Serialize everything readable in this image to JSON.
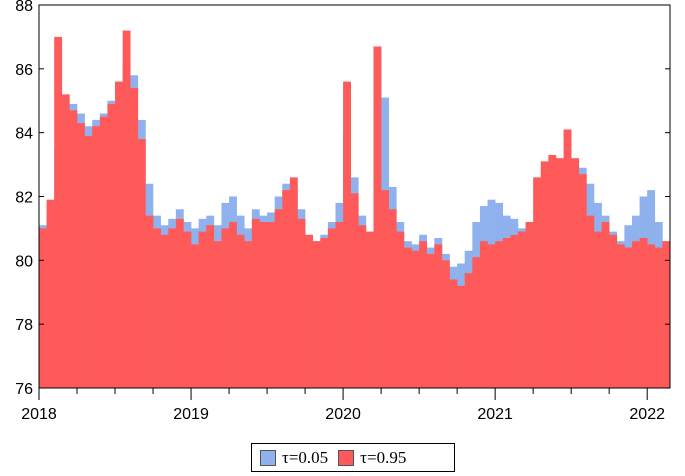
{
  "chart_data": {
    "type": "bar",
    "title": "",
    "xlabel": "",
    "ylabel": "",
    "ylim": [
      76,
      88
    ],
    "xlim": [
      2018.0,
      2022.15
    ],
    "yticks": [
      "76",
      "78",
      "80",
      "82",
      "84",
      "86",
      "88"
    ],
    "xticks": [
      "2018",
      "2019",
      "2020",
      "2021",
      "2022"
    ],
    "grid": false,
    "legend_position": "bottom-center",
    "series": [
      {
        "name": "τ=0.05",
        "color": "#8fb2ee",
        "x": [
          2018.0,
          2018.05,
          2018.1,
          2018.15,
          2018.2,
          2018.25,
          2018.3,
          2018.35,
          2018.4,
          2018.45,
          2018.5,
          2018.55,
          2018.6,
          2018.65,
          2018.7,
          2018.75,
          2018.8,
          2018.85,
          2018.9,
          2018.95,
          2019.0,
          2019.05,
          2019.1,
          2019.15,
          2019.2,
          2019.25,
          2019.3,
          2019.35,
          2019.4,
          2019.45,
          2019.5,
          2019.55,
          2019.6,
          2019.65,
          2019.7,
          2019.75,
          2019.8,
          2019.85,
          2019.9,
          2019.95,
          2020.0,
          2020.05,
          2020.1,
          2020.15,
          2020.2,
          2020.25,
          2020.3,
          2020.35,
          2020.4,
          2020.45,
          2020.5,
          2020.55,
          2020.6,
          2020.65,
          2020.7,
          2020.75,
          2020.8,
          2020.85,
          2020.9,
          2020.95,
          2021.0,
          2021.05,
          2021.1,
          2021.15,
          2021.2,
          2021.25,
          2021.3,
          2021.35,
          2021.4,
          2021.45,
          2021.5,
          2021.55,
          2021.6,
          2021.65,
          2021.7,
          2021.75,
          2021.8,
          2021.85,
          2021.9,
          2021.95,
          2022.0,
          2022.05,
          2022.1,
          2022.15
        ],
        "values": [
          81.1,
          81.4,
          83.5,
          84.8,
          84.9,
          84.6,
          84.2,
          84.4,
          84.6,
          85.0,
          85.6,
          86.2,
          85.8,
          84.4,
          82.4,
          81.4,
          81.1,
          81.3,
          81.6,
          81.2,
          81.0,
          81.3,
          81.4,
          81.1,
          81.8,
          82.0,
          81.4,
          81.0,
          81.6,
          81.4,
          81.5,
          82.0,
          82.4,
          82.2,
          81.6,
          80.8,
          80.6,
          80.8,
          81.2,
          81.8,
          84.0,
          82.6,
          81.4,
          80.8,
          86.7,
          85.1,
          82.3,
          81.2,
          80.6,
          80.5,
          80.8,
          80.4,
          80.7,
          80.2,
          79.8,
          79.9,
          80.3,
          81.2,
          81.7,
          81.9,
          81.8,
          81.4,
          81.3,
          81.0,
          80.6,
          80.8,
          81.5,
          82.6,
          82.9,
          82.8,
          82.9,
          82.9,
          82.4,
          81.8,
          81.4,
          80.9,
          80.6,
          81.1,
          81.4,
          82.0,
          82.2,
          81.2,
          80.6,
          80.8
        ]
      },
      {
        "name": "τ=0.95",
        "color": "#ff5a5a",
        "x": [
          2018.0,
          2018.05,
          2018.1,
          2018.15,
          2018.2,
          2018.25,
          2018.3,
          2018.35,
          2018.4,
          2018.45,
          2018.5,
          2018.55,
          2018.6,
          2018.65,
          2018.7,
          2018.75,
          2018.8,
          2018.85,
          2018.9,
          2018.95,
          2019.0,
          2019.05,
          2019.1,
          2019.15,
          2019.2,
          2019.25,
          2019.3,
          2019.35,
          2019.4,
          2019.45,
          2019.5,
          2019.55,
          2019.6,
          2019.65,
          2019.7,
          2019.75,
          2019.8,
          2019.85,
          2019.9,
          2019.95,
          2020.0,
          2020.05,
          2020.1,
          2020.15,
          2020.2,
          2020.25,
          2020.3,
          2020.35,
          2020.4,
          2020.45,
          2020.5,
          2020.55,
          2020.6,
          2020.65,
          2020.7,
          2020.75,
          2020.8,
          2020.85,
          2020.9,
          2020.95,
          2021.0,
          2021.05,
          2021.1,
          2021.15,
          2021.2,
          2021.25,
          2021.3,
          2021.35,
          2021.4,
          2021.45,
          2021.5,
          2021.55,
          2021.6,
          2021.65,
          2021.7,
          2021.75,
          2021.8,
          2021.85,
          2021.9,
          2021.95,
          2022.0,
          2022.05,
          2022.1,
          2022.15
        ],
        "values": [
          81.0,
          81.9,
          87.0,
          85.2,
          84.7,
          84.3,
          83.9,
          84.2,
          84.5,
          84.9,
          85.6,
          87.2,
          85.4,
          83.8,
          81.4,
          81.0,
          80.8,
          81.0,
          81.3,
          80.9,
          80.5,
          80.9,
          81.1,
          80.6,
          81.0,
          81.2,
          80.8,
          80.6,
          81.3,
          81.2,
          81.2,
          81.6,
          82.2,
          82.6,
          81.3,
          80.8,
          80.6,
          80.7,
          81.0,
          81.2,
          85.6,
          82.1,
          81.1,
          80.9,
          86.7,
          82.2,
          81.6,
          80.9,
          80.4,
          80.3,
          80.6,
          80.2,
          80.5,
          80.0,
          79.4,
          79.2,
          79.6,
          80.1,
          80.6,
          80.5,
          80.6,
          80.7,
          80.8,
          80.9,
          81.2,
          82.6,
          83.1,
          83.3,
          83.2,
          84.1,
          83.2,
          82.7,
          81.4,
          80.9,
          81.2,
          80.8,
          80.5,
          80.4,
          80.6,
          80.7,
          80.5,
          80.4,
          80.6,
          81.5
        ]
      }
    ]
  }
}
